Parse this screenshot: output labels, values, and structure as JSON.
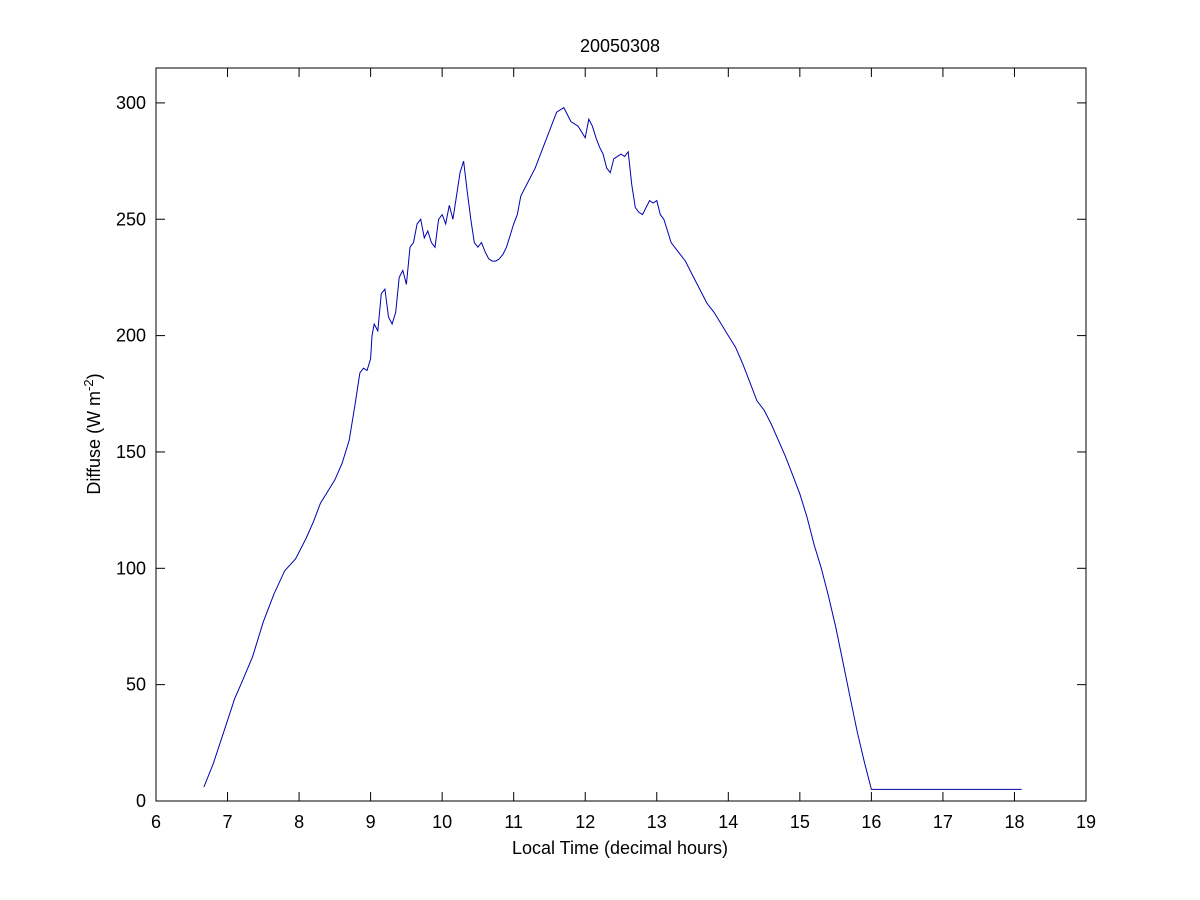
{
  "chart_data": {
    "type": "line",
    "title": "20050308",
    "xlabel": "Local Time (decimal hours)",
    "ylabel_main": "Diffuse (W m",
    "ylabel_sup": "-2",
    "ylabel_close": ")",
    "xlim": [
      6,
      19
    ],
    "ylim": [
      0,
      315
    ],
    "xticks": [
      6,
      7,
      8,
      9,
      10,
      11,
      12,
      13,
      14,
      15,
      16,
      17,
      18,
      19
    ],
    "yticks": [
      0,
      50,
      100,
      150,
      200,
      250,
      300
    ],
    "grid": false,
    "line_color": "#0000b0",
    "series": [
      {
        "x": [
          6.67,
          6.8,
          6.95,
          7.1,
          7.2,
          7.35,
          7.5,
          7.65,
          7.8,
          7.95,
          8.0,
          8.1,
          8.2,
          8.3,
          8.4,
          8.5,
          8.6,
          8.7,
          8.78,
          8.85,
          8.9,
          8.95,
          9.0,
          9.02,
          9.05,
          9.1,
          9.15,
          9.2,
          9.25,
          9.3,
          9.35,
          9.4,
          9.45,
          9.5,
          9.55,
          9.6,
          9.65,
          9.7,
          9.75,
          9.8,
          9.85,
          9.9,
          9.95,
          10.0,
          10.05,
          10.1,
          10.15,
          10.2,
          10.25,
          10.3,
          10.35,
          10.4,
          10.45,
          10.5,
          10.55,
          10.6,
          10.65,
          10.7,
          10.75,
          10.8,
          10.85,
          10.9,
          11.0,
          11.05,
          11.1,
          11.2,
          11.3,
          11.4,
          11.5,
          11.6,
          11.7,
          11.8,
          11.9,
          12.0,
          12.05,
          12.1,
          12.15,
          12.2,
          12.25,
          12.3,
          12.35,
          12.4,
          12.45,
          12.5,
          12.55,
          12.6,
          12.65,
          12.7,
          12.75,
          12.8,
          12.85,
          12.9,
          12.95,
          13.0,
          13.05,
          13.1,
          13.15,
          13.2,
          13.3,
          13.4,
          13.5,
          13.6,
          13.7,
          13.8,
          13.9,
          14.0,
          14.1,
          14.2,
          14.3,
          14.4,
          14.5,
          14.6,
          14.7,
          14.8,
          14.9,
          15.0,
          15.1,
          15.2,
          15.3,
          15.4,
          15.5,
          15.6,
          15.7,
          15.8,
          15.9,
          16.0,
          16.1,
          16.2,
          16.3,
          16.4,
          16.5,
          16.6,
          16.7,
          16.8,
          16.9,
          17.0,
          17.1,
          17.2,
          17.3,
          17.4,
          17.5,
          17.6,
          17.7,
          17.8,
          17.9,
          18.0,
          18.1
        ],
        "y": [
          6,
          16,
          30,
          44,
          51,
          62,
          77,
          89,
          99,
          104,
          107,
          113,
          120,
          128,
          133,
          138,
          145,
          155,
          170,
          184,
          186,
          185,
          190,
          200,
          205,
          202,
          218,
          220,
          208,
          205,
          210,
          225,
          228,
          222,
          238,
          240,
          248,
          250,
          242,
          245,
          240,
          238,
          250,
          252,
          248,
          256,
          250,
          260,
          270,
          275,
          262,
          250,
          240,
          238,
          240,
          236,
          233,
          232,
          232,
          233,
          235,
          238,
          248,
          252,
          260,
          266,
          272,
          280,
          288,
          296,
          298,
          292,
          290,
          285,
          293,
          290,
          285,
          281,
          278,
          272,
          270,
          276,
          277,
          278,
          277,
          279,
          265,
          255,
          253,
          252,
          255,
          258,
          257,
          258,
          252,
          250,
          245,
          240,
          236,
          232,
          226,
          220,
          214,
          210,
          205,
          200,
          195,
          188,
          180,
          172,
          168,
          162,
          155,
          148,
          140,
          132,
          122,
          110,
          100,
          88,
          75,
          60,
          45,
          30,
          17,
          5,
          5,
          5,
          5,
          5,
          5,
          5,
          5,
          5,
          5,
          5,
          5,
          5,
          5,
          5,
          5,
          5,
          5,
          5,
          5,
          5,
          5
        ]
      }
    ]
  }
}
